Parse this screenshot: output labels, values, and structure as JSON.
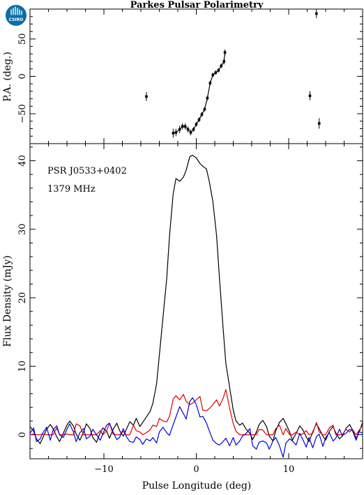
{
  "chart_data": [
    {
      "type": "scatter",
      "panel": "top",
      "title": "Parkes Pulsar Polarimetry",
      "ylabel": "P.A. (deg.)",
      "xlabel": "",
      "xlim": [
        -18,
        18
      ],
      "ylim": [
        -90,
        90
      ],
      "yticks": [
        -50,
        0,
        50
      ],
      "ytick_labels": [
        "−50",
        "0",
        "50"
      ],
      "xticks": [
        -10,
        0,
        10
      ],
      "grid": false,
      "series": [
        {
          "color": "#000000",
          "marker": "filled-square",
          "connected_region_x": [
            -2.5,
            3.1
          ],
          "points": [
            {
              "x": -5.4,
              "y": -27,
              "err": 6
            },
            {
              "x": -2.5,
              "y": -76,
              "err": 6
            },
            {
              "x": -2.2,
              "y": -75,
              "err": 5
            },
            {
              "x": -1.8,
              "y": -71,
              "err": 5
            },
            {
              "x": -1.5,
              "y": -67,
              "err": 4
            },
            {
              "x": -1.2,
              "y": -67,
              "err": 4
            },
            {
              "x": -0.9,
              "y": -71,
              "err": 4
            },
            {
              "x": -0.6,
              "y": -75,
              "err": 4
            },
            {
              "x": -0.3,
              "y": -71,
              "err": 3
            },
            {
              "x": 0.0,
              "y": -64,
              "err": 3
            },
            {
              "x": 0.3,
              "y": -58,
              "err": 3
            },
            {
              "x": 0.6,
              "y": -51,
              "err": 3
            },
            {
              "x": 0.9,
              "y": -44,
              "err": 3
            },
            {
              "x": 1.2,
              "y": -29,
              "err": 3
            },
            {
              "x": 1.5,
              "y": -9,
              "err": 3
            },
            {
              "x": 1.8,
              "y": 2,
              "err": 3
            },
            {
              "x": 2.1,
              "y": 5,
              "err": 3
            },
            {
              "x": 2.4,
              "y": 8,
              "err": 3
            },
            {
              "x": 2.7,
              "y": 14,
              "err": 3
            },
            {
              "x": 3.0,
              "y": 20,
              "err": 4
            },
            {
              "x": 3.1,
              "y": 32,
              "err": 4
            },
            {
              "x": 12.3,
              "y": -26,
              "err": 6
            },
            {
              "x": 13.0,
              "y": 84,
              "err": 6
            },
            {
              "x": 13.3,
              "y": -63,
              "err": 7
            }
          ]
        }
      ]
    },
    {
      "type": "line",
      "panel": "bottom",
      "title": "",
      "xlabel": "Pulse Longitude (deg)",
      "ylabel": "Flux Density (mJy)",
      "xlim": [
        -18,
        18
      ],
      "ylim": [
        -3.5,
        42.5
      ],
      "xticks": [
        -10,
        0,
        10
      ],
      "xtick_labels": [
        "−10",
        "0",
        "10"
      ],
      "yticks": [
        0,
        10,
        20,
        30,
        40
      ],
      "ytick_labels": [
        "0",
        "10",
        "20",
        "30",
        "40"
      ],
      "grid": false,
      "annotations": [
        "PSR J0533+0402",
        "1379 MHz"
      ],
      "series": [
        {
          "color": "#000000",
          "x": [
            -18.0,
            -17.6,
            -17.3,
            -16.9,
            -16.6,
            -16.2,
            -15.8,
            -15.5,
            -15.1,
            -14.8,
            -14.4,
            -14.0,
            -13.7,
            -13.3,
            -13.0,
            -12.6,
            -12.2,
            -11.9,
            -11.5,
            -11.2,
            -10.8,
            -10.4,
            -10.1,
            -9.7,
            -9.4,
            -9.0,
            -8.6,
            -8.3,
            -7.9,
            -7.6,
            -7.2,
            -6.8,
            -6.5,
            -6.1,
            -5.8,
            -5.4,
            -5.0,
            -4.7,
            -4.3,
            -4.0,
            -3.6,
            -3.2,
            -2.9,
            -2.5,
            -2.2,
            -1.8,
            -1.4,
            -1.1,
            -0.7,
            -0.4,
            0.0,
            0.4,
            0.7,
            1.1,
            1.4,
            1.8,
            2.2,
            2.5,
            2.9,
            3.2,
            3.6,
            4.0,
            4.3,
            4.7,
            5.0,
            5.4,
            5.8,
            6.1,
            6.5,
            6.8,
            7.2,
            7.6,
            7.9,
            8.3,
            8.6,
            9.0,
            9.4,
            9.7,
            10.1,
            10.4,
            10.8,
            11.2,
            11.5,
            11.9,
            12.2,
            12.6,
            13.0,
            13.3,
            13.7,
            14.0,
            14.4,
            14.8,
            15.1,
            15.5,
            15.8,
            16.2,
            16.6,
            16.9,
            17.3,
            17.6,
            18.0
          ],
          "values": [
            1.2,
            0.5,
            -0.6,
            -1.3,
            -0.4,
            0.8,
            1.5,
            0.9,
            -0.3,
            -1.0,
            0.2,
            1.4,
            2.0,
            1.3,
            0.1,
            -0.8,
            0.4,
            1.6,
            0.9,
            -0.4,
            -1.1,
            0.3,
            1.0,
            0.5,
            -0.5,
            0.8,
            1.7,
            0.6,
            -0.2,
            0.7,
            1.9,
            1.4,
            2.4,
            1.2,
            1.8,
            2.6,
            3.4,
            4.6,
            7.4,
            11.6,
            17.2,
            22.8,
            29.0,
            35.2,
            37.4,
            37.0,
            37.6,
            38.6,
            40.6,
            40.8,
            40.4,
            39.6,
            39.2,
            38.8,
            37.0,
            34.0,
            29.0,
            23.0,
            15.6,
            10.4,
            7.0,
            3.6,
            2.0,
            1.4,
            1.7,
            0.8,
            0.2,
            -0.7,
            0.4,
            1.5,
            2.1,
            1.2,
            -0.2,
            -0.9,
            0.6,
            1.8,
            2.4,
            1.6,
            0.4,
            -0.8,
            0.2,
            1.3,
            0.8,
            -0.3,
            -1.0,
            0.4,
            1.6,
            0.9,
            -0.2,
            -0.8,
            0.5,
            1.2,
            0.3,
            -0.6,
            -0.2,
            0.9,
            1.5,
            0.7,
            -0.5,
            0.3,
            1.8
          ]
        },
        {
          "color": "#e00000",
          "x": [
            -18.0,
            -17.6,
            -17.3,
            -16.9,
            -16.6,
            -16.2,
            -15.8,
            -15.5,
            -15.1,
            -14.8,
            -14.4,
            -14.0,
            -13.7,
            -13.3,
            -13.0,
            -12.6,
            -12.2,
            -11.9,
            -11.5,
            -11.2,
            -10.8,
            -10.4,
            -10.1,
            -9.7,
            -9.4,
            -9.0,
            -8.6,
            -8.3,
            -7.9,
            -7.6,
            -7.2,
            -6.8,
            -6.5,
            -6.1,
            -5.8,
            -5.4,
            -5.0,
            -4.7,
            -4.3,
            -4.0,
            -3.6,
            -3.2,
            -2.9,
            -2.5,
            -2.2,
            -1.8,
            -1.4,
            -1.1,
            -0.7,
            -0.4,
            0.0,
            0.4,
            0.7,
            1.1,
            1.4,
            1.8,
            2.2,
            2.5,
            2.9,
            3.2,
            3.6,
            4.0,
            4.3,
            4.7,
            5.0,
            5.4,
            5.8,
            6.1,
            6.5,
            6.8,
            7.2,
            7.6,
            7.9,
            8.3,
            8.6,
            9.0,
            9.4,
            9.7,
            10.1,
            10.4,
            10.8,
            11.2,
            11.5,
            11.9,
            12.2,
            12.6,
            13.0,
            13.3,
            13.7,
            14.0,
            14.4,
            14.8,
            15.1,
            15.5,
            15.8,
            16.2,
            16.6,
            16.9,
            17.3,
            17.6,
            18.0
          ],
          "values": [
            0.0,
            0.1,
            0.0,
            0.0,
            0.1,
            0.0,
            0.0,
            0.0,
            1.0,
            0.0,
            0.0,
            0.1,
            0.0,
            0.0,
            1.6,
            1.3,
            0.0,
            0.0,
            0.0,
            0.0,
            0.0,
            0.6,
            0.0,
            0.6,
            1.7,
            0.1,
            0.0,
            0.0,
            0.5,
            0.0,
            0.0,
            1.4,
            0.6,
            0.4,
            0.0,
            0.3,
            0.7,
            1.4,
            1.2,
            2.4,
            2.0,
            1.9,
            2.7,
            5.2,
            5.7,
            5.1,
            5.9,
            4.9,
            4.4,
            4.6,
            5.1,
            5.6,
            3.6,
            3.5,
            3.8,
            4.4,
            5.1,
            4.2,
            5.3,
            6.6,
            3.9,
            1.6,
            0.5,
            0.0,
            0.0,
            0.0,
            0.0,
            0.0,
            0.0,
            0.8,
            0.7,
            0.0,
            0.0,
            0.0,
            0.9,
            1.4,
            0.0,
            0.9,
            0.0,
            0.0,
            0.4,
            0.0,
            0.1,
            0.6,
            0.0,
            0.2,
            1.8,
            0.4,
            0.0,
            0.0,
            1.0,
            1.4,
            0.0,
            0.0,
            0.0,
            0.8,
            0.4,
            0.8,
            0.0,
            0.6,
            1.4
          ]
        },
        {
          "color": "#0000dd",
          "x": [
            -18.0,
            -17.6,
            -17.3,
            -16.9,
            -16.6,
            -16.2,
            -15.8,
            -15.5,
            -15.1,
            -14.8,
            -14.4,
            -14.0,
            -13.7,
            -13.3,
            -13.0,
            -12.6,
            -12.2,
            -11.9,
            -11.5,
            -11.2,
            -10.8,
            -10.4,
            -10.1,
            -9.7,
            -9.4,
            -9.0,
            -8.6,
            -8.3,
            -7.9,
            -7.6,
            -7.2,
            -6.8,
            -6.5,
            -6.1,
            -5.8,
            -5.4,
            -5.0,
            -4.7,
            -4.3,
            -4.0,
            -3.6,
            -3.2,
            -2.9,
            -2.5,
            -2.2,
            -1.8,
            -1.4,
            -1.1,
            -0.7,
            -0.4,
            0.0,
            0.4,
            0.7,
            1.1,
            1.4,
            1.8,
            2.2,
            2.5,
            2.9,
            3.2,
            3.6,
            4.0,
            4.3,
            4.7,
            5.0,
            5.4,
            5.8,
            6.1,
            6.5,
            6.8,
            7.2,
            7.6,
            7.9,
            8.3,
            8.6,
            9.0,
            9.4,
            9.7,
            10.1,
            10.4,
            10.8,
            11.2,
            11.5,
            11.9,
            12.2,
            12.6,
            13.0,
            13.3,
            13.7,
            14.0,
            14.4,
            14.8,
            15.1,
            15.5,
            15.8,
            16.2,
            16.6,
            16.9,
            17.3,
            17.6,
            18.0
          ],
          "values": [
            0.2,
            1.0,
            -1.0,
            -0.6,
            0.3,
            1.1,
            -0.8,
            0.7,
            1.3,
            0.0,
            -0.4,
            0.8,
            1.6,
            0.4,
            -1.0,
            0.3,
            0.9,
            -0.6,
            -0.2,
            0.8,
            0.0,
            -0.8,
            0.2,
            1.4,
            1.7,
            0.4,
            -0.7,
            -0.4,
            0.9,
            -0.2,
            -1.0,
            -1.1,
            -0.3,
            -0.7,
            -1.4,
            -0.6,
            -0.9,
            -0.4,
            -1.2,
            0.4,
            1.1,
            0.3,
            -0.1,
            1.5,
            2.6,
            4.1,
            3.1,
            2.3,
            4.9,
            5.4,
            4.4,
            2.6,
            2.7,
            1.7,
            0.6,
            -0.8,
            -1.3,
            -1.5,
            -1.0,
            -0.5,
            -1.6,
            -0.4,
            -1.5,
            -0.9,
            -0.2,
            0.2,
            0.9,
            -1.6,
            -2.1,
            -1.1,
            -0.9,
            -1.2,
            -2.1,
            -0.9,
            -0.4,
            -1.6,
            -3.3,
            -1.2,
            -0.6,
            -0.9,
            -1.5,
            0.2,
            -0.6,
            -1.8,
            -0.4,
            -1.9,
            -0.3,
            0.1,
            -1.7,
            -0.4,
            0.3,
            -0.9,
            -0.5,
            0.8,
            -0.1,
            0.2,
            0.8,
            0.6,
            -0.8,
            0.5,
            0.2
          ]
        }
      ]
    }
  ],
  "logo": {
    "text": "CSIRO",
    "color": "#0a6ea8"
  }
}
